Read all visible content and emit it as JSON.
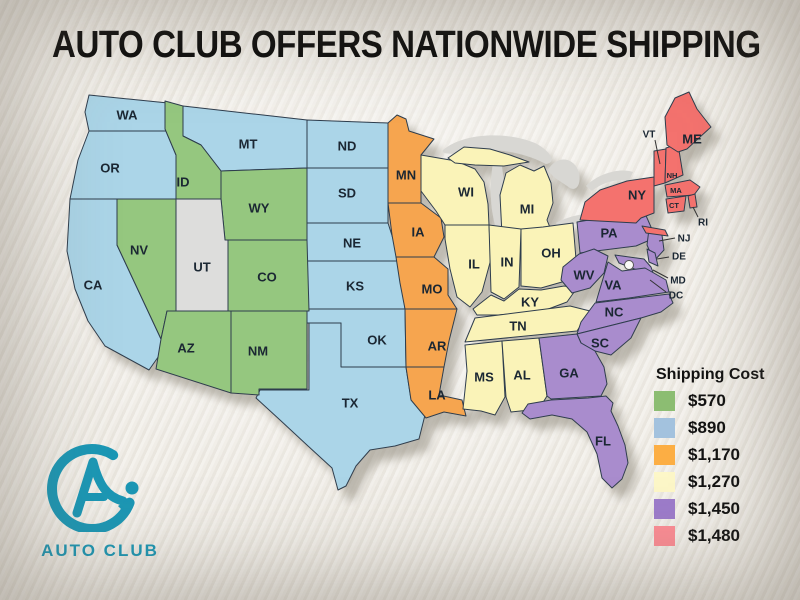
{
  "title": "AUTO CLUB OFFERS NATIONWIDE SHIPPING",
  "logo": {
    "text": "AUTO CLUB",
    "color": "#1b97b5"
  },
  "legend": {
    "title": "Shipping Cost",
    "items": [
      {
        "cost": "$570",
        "group": "green",
        "swatch": "#8cbd72"
      },
      {
        "cost": "$890",
        "group": "blue",
        "swatch": "#a3c2de"
      },
      {
        "cost": "$1,170",
        "group": "orange",
        "swatch": "#fcae44"
      },
      {
        "cost": "$1,270",
        "group": "yellow",
        "swatch": "#fdf7c8"
      },
      {
        "cost": "$1,450",
        "group": "purple",
        "swatch": "#9d7ccb"
      },
      {
        "cost": "$1,480",
        "group": "red",
        "swatch": "#fc8d95"
      }
    ]
  },
  "map": {
    "group_colors": {
      "green": "#95c77f",
      "blue": "#abd5e8",
      "orange": "#f6a54f",
      "yellow": "#faf3b8",
      "purple": "#a98ccd",
      "red": "#f4726e",
      "none": "#dddddc"
    },
    "lake_color": "#d8d7d3",
    "states": [
      {
        "abbr": "WA",
        "group": "blue",
        "cost": "$890"
      },
      {
        "abbr": "OR",
        "group": "blue",
        "cost": "$890"
      },
      {
        "abbr": "CA",
        "group": "blue",
        "cost": "$890"
      },
      {
        "abbr": "MT",
        "group": "blue",
        "cost": "$890"
      },
      {
        "abbr": "ND",
        "group": "blue",
        "cost": "$890"
      },
      {
        "abbr": "SD",
        "group": "blue",
        "cost": "$890"
      },
      {
        "abbr": "NE",
        "group": "blue",
        "cost": "$890"
      },
      {
        "abbr": "KS",
        "group": "blue",
        "cost": "$890"
      },
      {
        "abbr": "OK",
        "group": "blue",
        "cost": "$890"
      },
      {
        "abbr": "TX",
        "group": "blue",
        "cost": "$890"
      },
      {
        "abbr": "ID",
        "group": "green",
        "cost": "$570"
      },
      {
        "abbr": "NV",
        "group": "green",
        "cost": "$570"
      },
      {
        "abbr": "WY",
        "group": "green",
        "cost": "$570"
      },
      {
        "abbr": "CO",
        "group": "green",
        "cost": "$570"
      },
      {
        "abbr": "AZ",
        "group": "green",
        "cost": "$570"
      },
      {
        "abbr": "NM",
        "group": "green",
        "cost": "$570"
      },
      {
        "abbr": "UT",
        "group": "none",
        "cost": null
      },
      {
        "abbr": "MN",
        "group": "orange",
        "cost": "$1,170"
      },
      {
        "abbr": "IA",
        "group": "orange",
        "cost": "$1,170"
      },
      {
        "abbr": "MO",
        "group": "orange",
        "cost": "$1,170"
      },
      {
        "abbr": "AR",
        "group": "orange",
        "cost": "$1,170"
      },
      {
        "abbr": "LA",
        "group": "orange",
        "cost": "$1,170"
      },
      {
        "abbr": "WI",
        "group": "yellow",
        "cost": "$1,270"
      },
      {
        "abbr": "MI",
        "group": "yellow",
        "cost": "$1,270"
      },
      {
        "abbr": "IL",
        "group": "yellow",
        "cost": "$1,270"
      },
      {
        "abbr": "IN",
        "group": "yellow",
        "cost": "$1,270"
      },
      {
        "abbr": "OH",
        "group": "yellow",
        "cost": "$1,270"
      },
      {
        "abbr": "KY",
        "group": "yellow",
        "cost": "$1,270"
      },
      {
        "abbr": "TN",
        "group": "yellow",
        "cost": "$1,270"
      },
      {
        "abbr": "MS",
        "group": "yellow",
        "cost": "$1,270"
      },
      {
        "abbr": "AL",
        "group": "yellow",
        "cost": "$1,270"
      },
      {
        "abbr": "PA",
        "group": "purple",
        "cost": "$1,450"
      },
      {
        "abbr": "NJ",
        "group": "purple",
        "cost": "$1,450"
      },
      {
        "abbr": "DE",
        "group": "purple",
        "cost": "$1,450"
      },
      {
        "abbr": "MD",
        "group": "purple",
        "cost": "$1,450"
      },
      {
        "abbr": "DC",
        "group": "purple",
        "cost": "$1,450"
      },
      {
        "abbr": "WV",
        "group": "purple",
        "cost": "$1,450"
      },
      {
        "abbr": "VA",
        "group": "purple",
        "cost": "$1,450"
      },
      {
        "abbr": "NC",
        "group": "purple",
        "cost": "$1,450"
      },
      {
        "abbr": "SC",
        "group": "purple",
        "cost": "$1,450"
      },
      {
        "abbr": "GA",
        "group": "purple",
        "cost": "$1,450"
      },
      {
        "abbr": "FL",
        "group": "purple",
        "cost": "$1,450"
      },
      {
        "abbr": "NY",
        "group": "red",
        "cost": "$1,480"
      },
      {
        "abbr": "VT",
        "group": "red",
        "cost": "$1,480"
      },
      {
        "abbr": "NH",
        "group": "red",
        "cost": "$1,480"
      },
      {
        "abbr": "MA",
        "group": "red",
        "cost": "$1,480"
      },
      {
        "abbr": "CT",
        "group": "red",
        "cost": "$1,480"
      },
      {
        "abbr": "RI",
        "group": "red",
        "cost": "$1,480"
      },
      {
        "abbr": "ME",
        "group": "red",
        "cost": "$1,480"
      }
    ]
  }
}
